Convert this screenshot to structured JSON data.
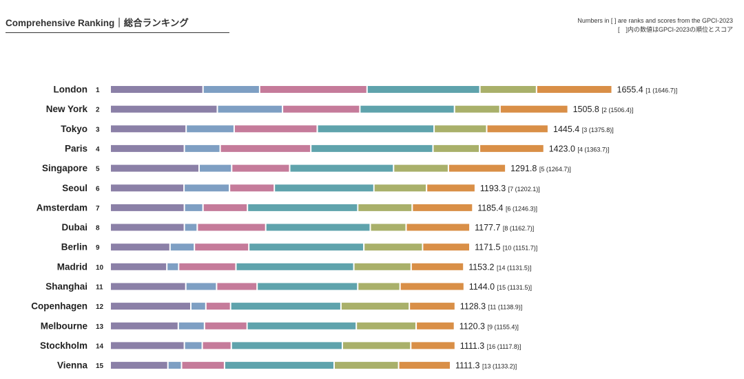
{
  "header": {
    "title": "Comprehensive Ranking｜総合ランキング",
    "note_line1": "Numbers in [ ] are ranks and scores from the GPCI-2023",
    "note_line2": "[　]内の数値はGPCI-2023の順位とスコア"
  },
  "colors": {
    "economy": "#8b80a7",
    "research": "#7e9fc3",
    "cultural": "#c57b9a",
    "livability": "#5fa3ac",
    "environment": "#a9b06a",
    "accessibility": "#d98f47"
  },
  "chart_data": {
    "type": "bar",
    "orientation": "horizontal",
    "stacked": true,
    "title": "Comprehensive Ranking｜総合ランキング",
    "series_keys": [
      "economy",
      "research",
      "cultural",
      "livability",
      "environment",
      "accessibility"
    ],
    "rows": [
      {
        "city": "London",
        "rank": "1",
        "total": "1655.4",
        "prev": "[1 (1646.7)]",
        "segments": [
          259,
          158,
          300,
          315,
          158,
          211
        ]
      },
      {
        "city": "New York",
        "rank": "2",
        "total": "1505.8",
        "prev": "[2 (1506.4)]",
        "segments": [
          299,
          182,
          216,
          264,
          127,
          190
        ]
      },
      {
        "city": "Tokyo",
        "rank": "3",
        "total": "1445.4",
        "prev": "[3 (1375.8)]",
        "segments": [
          212,
          134,
          232,
          326,
          147,
          172
        ]
      },
      {
        "city": "Paris",
        "rank": "4",
        "total": "1423.0",
        "prev": "[4 (1363.7)]",
        "segments": [
          207,
          100,
          253,
          341,
          130,
          180
        ]
      },
      {
        "city": "Singapore",
        "rank": "5",
        "total": "1291.8",
        "prev": "[5 (1264.7)]",
        "segments": [
          248,
          91,
          162,
          290,
          153,
          160
        ]
      },
      {
        "city": "Seoul",
        "rank": "6",
        "total": "1193.3",
        "prev": "[7 (1202.1)]",
        "segments": [
          206,
          127,
          125,
          278,
          147,
          136
        ]
      },
      {
        "city": "Amsterdam",
        "rank": "7",
        "total": "1185.4",
        "prev": "[6 (1246.3)]",
        "segments": [
          207,
          52,
          124,
          308,
          152,
          169
        ]
      },
      {
        "city": "Dubai",
        "rank": "8",
        "total": "1177.7",
        "prev": "[8 (1162.7)]",
        "segments": [
          207,
          36,
          191,
          292,
          100,
          178
        ]
      },
      {
        "city": "Berlin",
        "rank": "9",
        "total": "1171.5",
        "prev": "[10 (1151.7)]",
        "segments": [
          167,
          68,
          152,
          321,
          164,
          132
        ]
      },
      {
        "city": "Madrid",
        "rank": "10",
        "total": "1153.2",
        "prev": "[14 (1131.5)]",
        "segments": [
          158,
          33,
          160,
          329,
          160,
          147
        ]
      },
      {
        "city": "Shanghai",
        "rank": "11",
        "total": "1144.0",
        "prev": "[15 (1131.5)]",
        "segments": [
          211,
          86,
          113,
          281,
          118,
          179
        ]
      },
      {
        "city": "Copenhagen",
        "rank": "12",
        "total": "1128.3",
        "prev": "[11 (1138.9)]",
        "segments": [
          225,
          42,
          69,
          308,
          191,
          128
        ]
      },
      {
        "city": "Melbourne",
        "rank": "13",
        "total": "1120.3",
        "prev": "[9 (1155.4)]",
        "segments": [
          190,
          73,
          119,
          305,
          167,
          107
        ]
      },
      {
        "city": "Stockholm",
        "rank": "14",
        "total": "1111.3",
        "prev": "[16 (1117.8)]",
        "segments": [
          207,
          50,
          81,
          310,
          191,
          124
        ]
      },
      {
        "city": "Vienna",
        "rank": "15",
        "total": "1111.3",
        "prev": "[13 (1133.2)]",
        "segments": [
          161,
          38,
          120,
          306,
          180,
          145
        ]
      }
    ]
  }
}
